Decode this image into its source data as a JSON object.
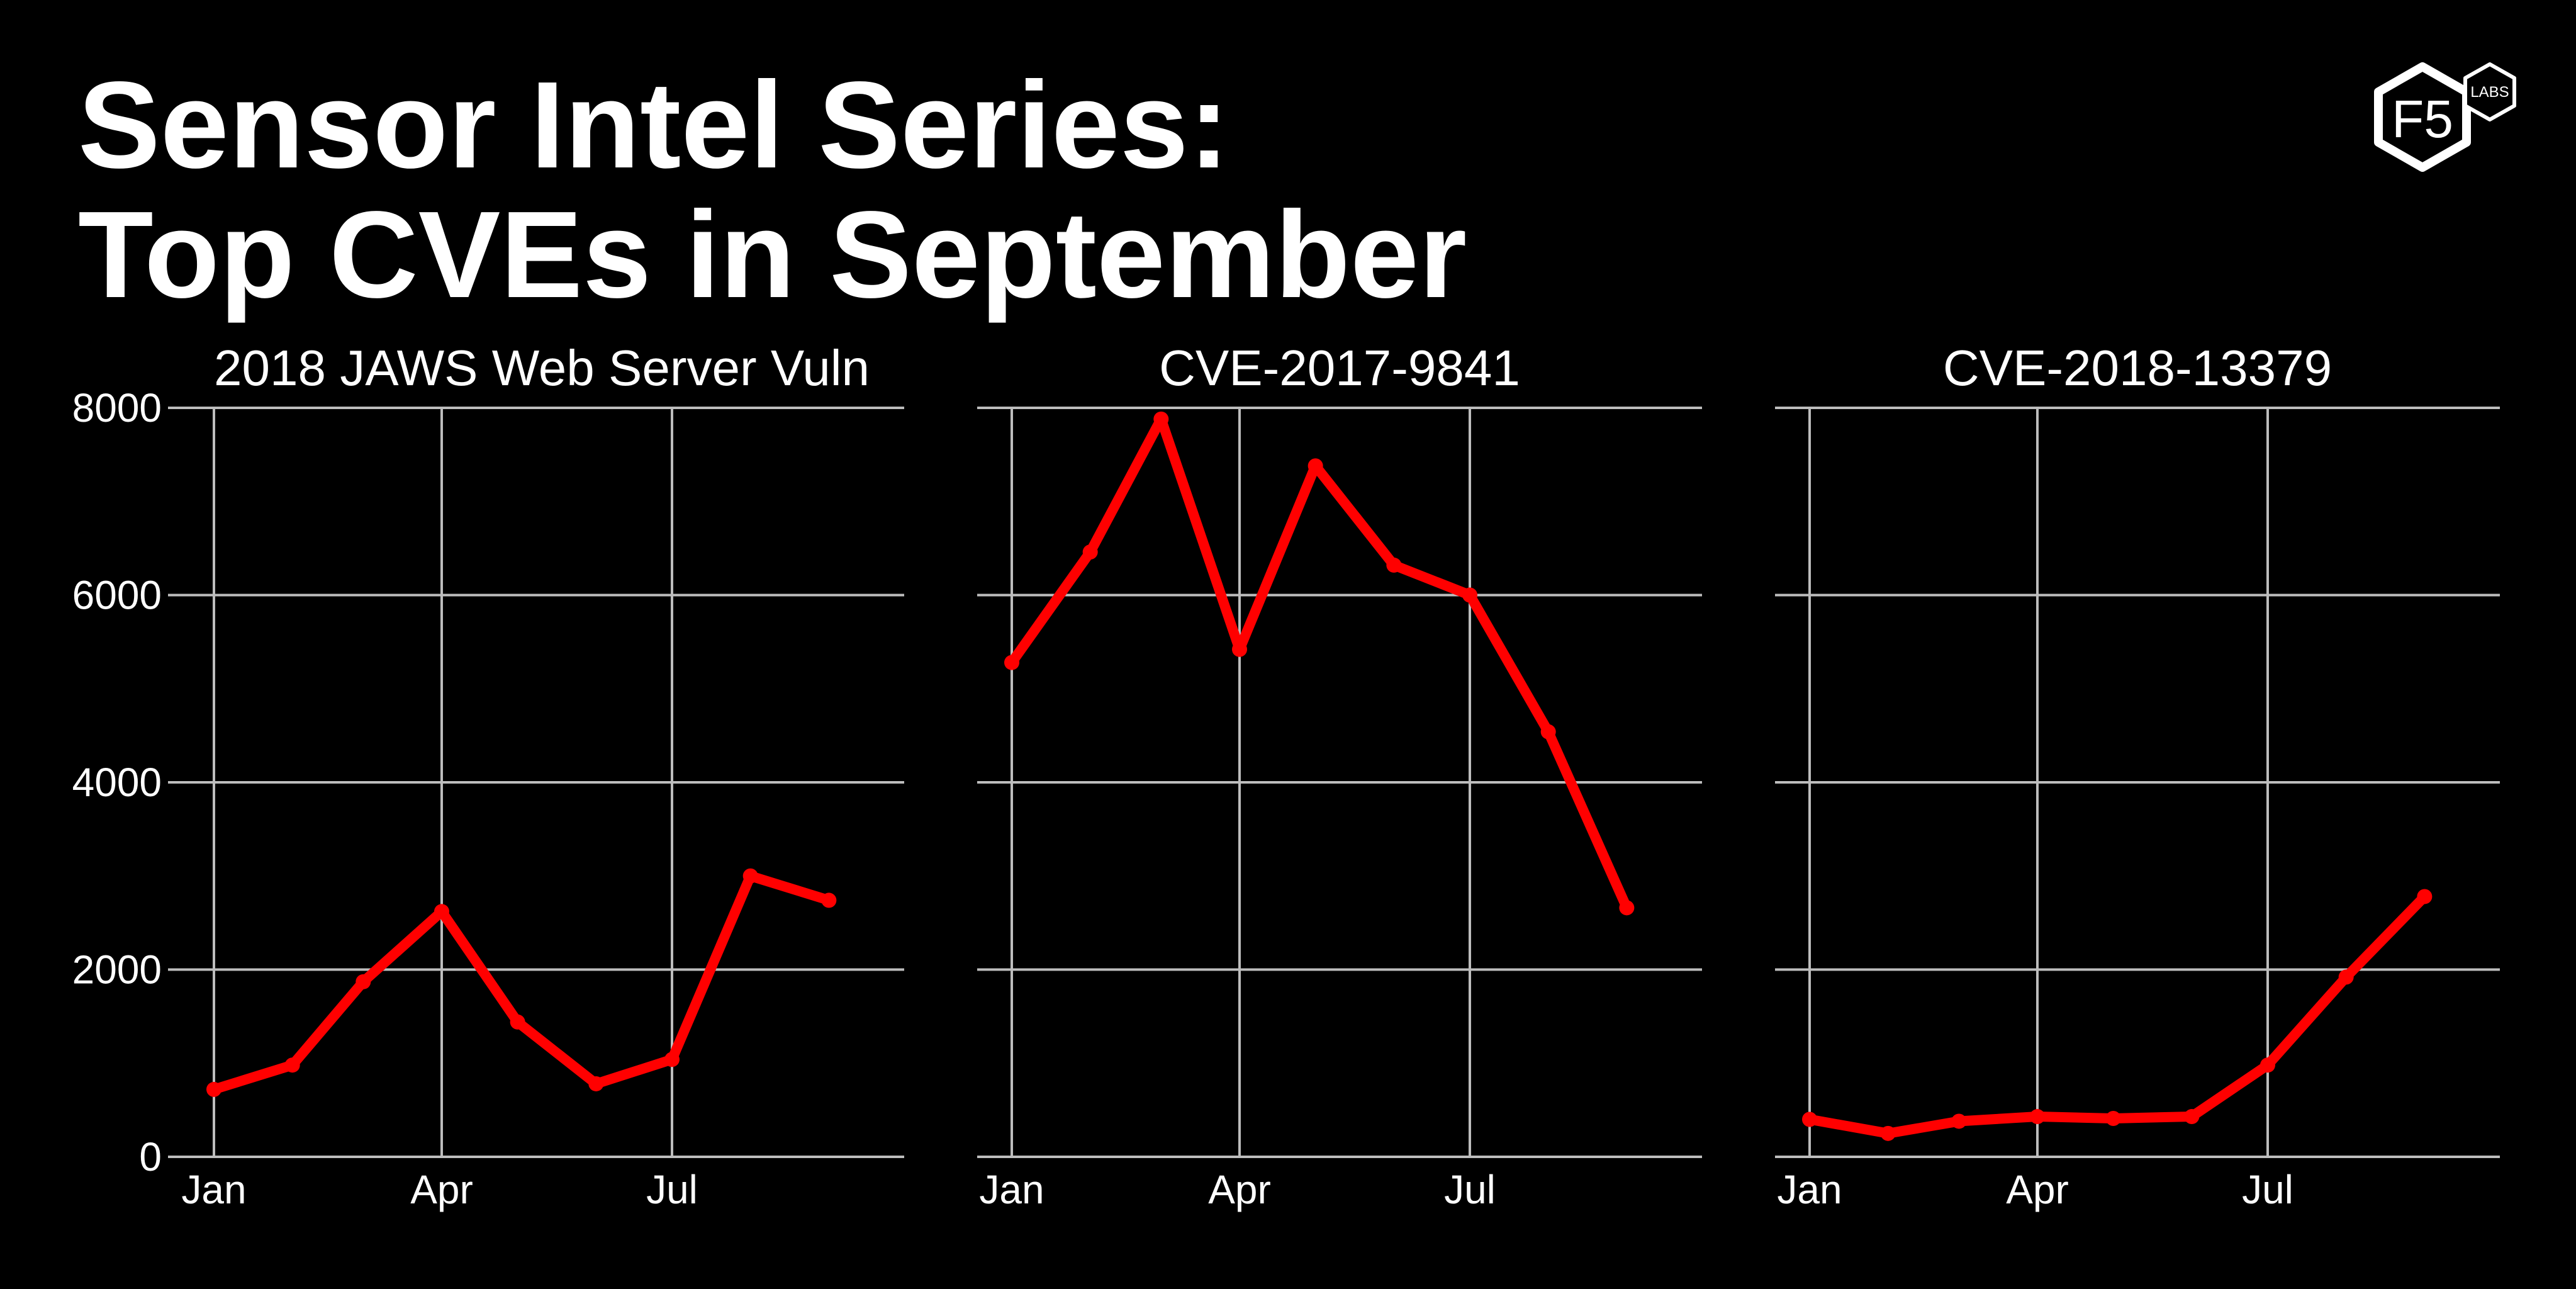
{
  "title": {
    "line1": "Sensor Intel Series:",
    "line2": "Top CVEs in September"
  },
  "logo": {
    "text": "F5",
    "badge": "LABS"
  },
  "colors": {
    "background": "#000000",
    "line": "#ff0000",
    "grid": "#bdbdbd",
    "text": "#ffffff"
  },
  "chart_data": {
    "type": "line",
    "ylim": [
      0,
      8000
    ],
    "yticks": [
      0,
      2000,
      4000,
      6000,
      8000
    ],
    "ytick_labels": [
      "0",
      "2000",
      "4000",
      "6000",
      "8000"
    ],
    "xlim": [
      "2018-01-01",
      "2018-09-30"
    ],
    "xticks": [
      "2018-01-01",
      "2018-04-01",
      "2018-07-01"
    ],
    "xtick_labels": [
      "Jan",
      "Apr",
      "Jul"
    ],
    "grid": true,
    "x": [
      "2018-01-01",
      "2018-02-01",
      "2018-03-01",
      "2018-04-01",
      "2018-05-01",
      "2018-06-01",
      "2018-07-01",
      "2018-08-01",
      "2018-09-01"
    ],
    "panels": [
      {
        "title": "2018 JAWS Web Server Vuln",
        "values": [
          720,
          980,
          1870,
          2620,
          1440,
          780,
          1040,
          3000,
          2740
        ]
      },
      {
        "title": "CVE-2017-9841",
        "values": [
          5280,
          6460,
          7880,
          5420,
          7380,
          6320,
          6000,
          4540,
          2660
        ]
      },
      {
        "title": "CVE-2018-13379",
        "values": [
          400,
          250,
          380,
          430,
          410,
          430,
          980,
          1920,
          2780
        ]
      }
    ]
  }
}
